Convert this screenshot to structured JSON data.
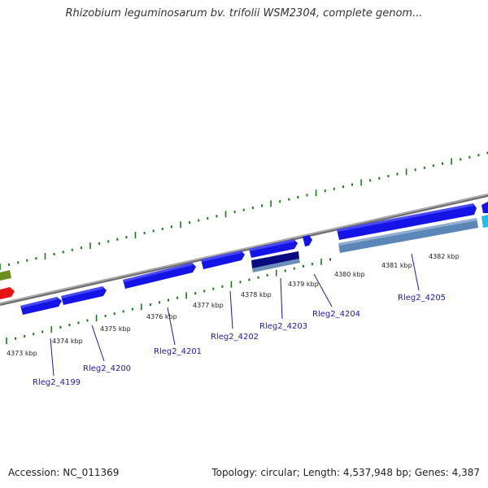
{
  "title": "Rhizobium leguminosarum bv. trifolii WSM2304, complete genom...",
  "footer": {
    "accession": "Accession: NC_011369",
    "summary": "Topology: circular; Length: 4,537,948 bp; Genes: 4,387"
  },
  "colors": {
    "backbone": "#8a8a8a",
    "tick": "#1a7a1a",
    "gene_forward": "#1414e6",
    "gene_highlight": "#0a0a80",
    "gene_highlight_lower": "#6a8fb8",
    "long_gene_lower": "#5b86b8",
    "cyan_gene": "#19c0f0",
    "olive_gene": "#6b8e23",
    "red_gene": "#e61414",
    "label": "#1a1aa8"
  },
  "kbp_labels": [
    "4373 kbp",
    "4374 kbp",
    "4375 kbp",
    "4376 kbp",
    "4377 kbp",
    "4378 kbp",
    "4379 kbp",
    "4380 kbp",
    "4381 kbp",
    "4382 kbp"
  ],
  "genes": [
    "Rleg2_4199",
    "Rleg2_4200",
    "Rleg2_4201",
    "Rleg2_4202",
    "Rleg2_4203",
    "Rleg2_4204",
    "Rleg2_4205"
  ]
}
